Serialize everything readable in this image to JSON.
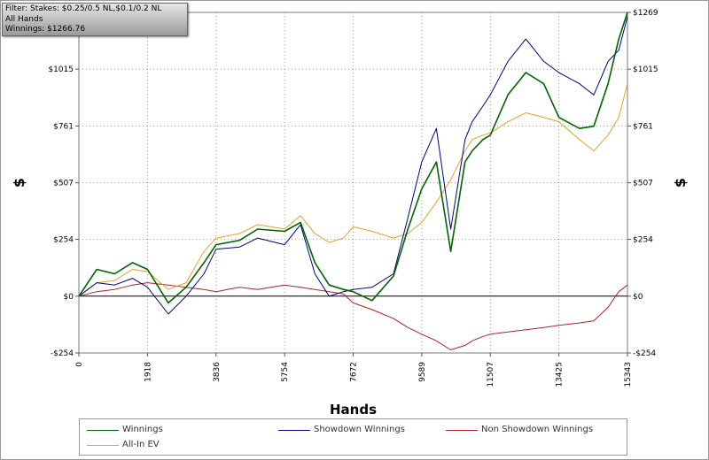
{
  "filter": {
    "line1": "Filter: Stakes: $0.25/0.5 NL,$0.1/0.2 NL",
    "line2": "All Hands",
    "line3": "Winnings: $1266.76"
  },
  "colors": {
    "winnings": "#006400",
    "showdown": "#00008b",
    "non_showdown": "#b22222",
    "allin_ev": "#e6a02e",
    "grid": "#9a9a9a",
    "zero_line": "#000000"
  },
  "chart_data": {
    "type": "line",
    "xlabel": "Hands",
    "ylabel": "$",
    "xlim": [
      0,
      15343
    ],
    "ylim": [
      -254,
      1269
    ],
    "x_ticks": [
      0,
      1918,
      3836,
      5754,
      7672,
      9589,
      11507,
      13425,
      15343
    ],
    "y_ticks": [
      -254,
      0,
      254,
      507,
      761,
      1015,
      1269
    ],
    "y_tick_labels": [
      "-$254",
      "$0",
      "$254",
      "$507",
      "$761",
      "$1015",
      "$1269"
    ],
    "legend": [
      "Winnings",
      "Showdown Winnings",
      "Non Showdown Winnings",
      "All-In EV"
    ],
    "x": [
      0,
      500,
      1000,
      1500,
      1918,
      2500,
      3000,
      3500,
      3836,
      4500,
      5000,
      5754,
      6200,
      6600,
      7000,
      7400,
      7672,
      8200,
      8800,
      9200,
      9589,
      10000,
      10400,
      10800,
      11000,
      11300,
      11507,
      12000,
      12500,
      13000,
      13425,
      14000,
      14400,
      14800,
      15100,
      15343
    ],
    "series": [
      {
        "name": "Winnings",
        "values": [
          0,
          120,
          100,
          150,
          120,
          -30,
          40,
          150,
          230,
          250,
          300,
          290,
          330,
          150,
          50,
          30,
          20,
          -20,
          90,
          300,
          480,
          600,
          200,
          600,
          650,
          700,
          720,
          900,
          1000,
          950,
          800,
          750,
          760,
          950,
          1150,
          1269
        ]
      },
      {
        "name": "Showdown Winnings",
        "values": [
          0,
          60,
          50,
          80,
          40,
          -80,
          0,
          100,
          210,
          220,
          260,
          230,
          320,
          100,
          0,
          20,
          30,
          40,
          100,
          350,
          600,
          750,
          300,
          700,
          780,
          850,
          900,
          1050,
          1150,
          1050,
          1000,
          950,
          900,
          1050,
          1100,
          1250
        ]
      },
      {
        "name": "Non Showdown Winnings",
        "values": [
          0,
          20,
          30,
          50,
          60,
          50,
          40,
          30,
          20,
          40,
          30,
          50,
          40,
          30,
          20,
          10,
          -30,
          -60,
          -100,
          -140,
          -170,
          -200,
          -240,
          -220,
          -200,
          -180,
          -170,
          -160,
          -150,
          -140,
          -130,
          -120,
          -110,
          -50,
          20,
          50
        ]
      },
      {
        "name": "All-In EV",
        "values": [
          0,
          60,
          70,
          120,
          110,
          30,
          60,
          200,
          260,
          280,
          320,
          300,
          360,
          280,
          240,
          260,
          310,
          290,
          260,
          280,
          330,
          420,
          520,
          650,
          700,
          720,
          730,
          780,
          820,
          800,
          780,
          700,
          650,
          720,
          800,
          950
        ]
      }
    ],
    "grid": true,
    "legend_position": "bottom"
  }
}
